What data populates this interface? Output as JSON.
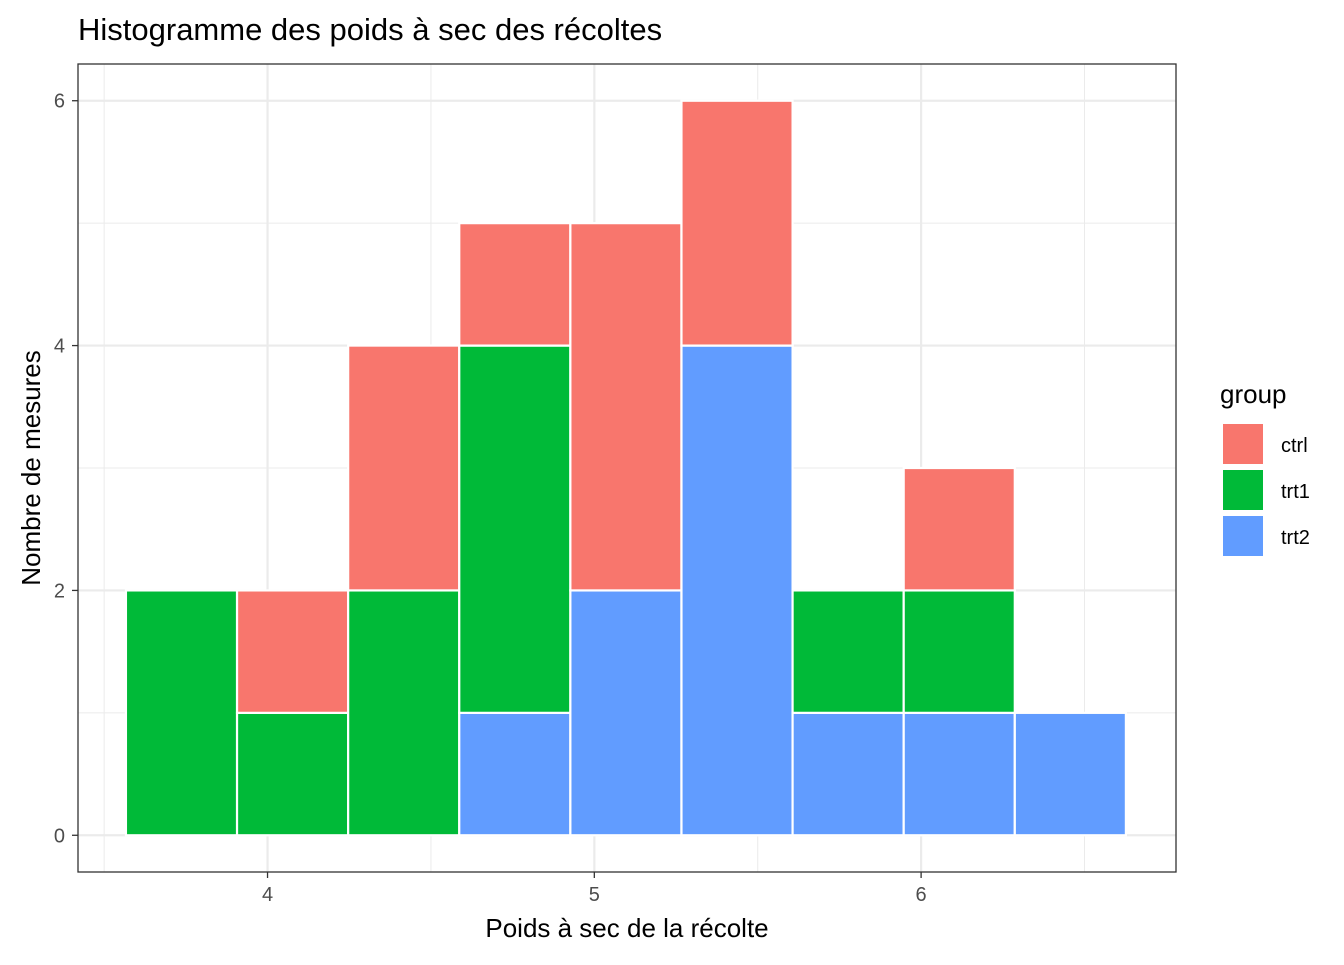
{
  "chart_data": {
    "type": "bar",
    "subtype": "stacked-histogram",
    "title": "Histogramme des poids à sec des récoltes",
    "xlabel": "Poids à sec de la récolte",
    "ylabel": "Nombre de mesures",
    "xlim": [
      3.42,
      6.78
    ],
    "ylim": [
      -0.3,
      6.3
    ],
    "xticks": [
      4,
      5,
      6
    ],
    "yticks": [
      0,
      2,
      4,
      6
    ],
    "grid": true,
    "legend": {
      "title": "group",
      "position": "right"
    },
    "bins": [
      [
        3.5667,
        3.9067
      ],
      [
        3.9067,
        4.2467
      ],
      [
        4.2467,
        4.5867
      ],
      [
        4.5867,
        4.9267
      ],
      [
        4.9267,
        5.2667
      ],
      [
        5.2667,
        5.6067
      ],
      [
        5.6067,
        5.9467
      ],
      [
        5.9467,
        6.2867
      ],
      [
        6.2867,
        6.6267
      ]
    ],
    "series": [
      {
        "name": "ctrl",
        "color": "#F8766D",
        "values": [
          0,
          1,
          2,
          1,
          3,
          2,
          0,
          1,
          0
        ]
      },
      {
        "name": "trt1",
        "color": "#00BA38",
        "values": [
          2,
          1,
          2,
          3,
          0,
          0,
          1,
          1,
          0
        ]
      },
      {
        "name": "trt2",
        "color": "#619CFF",
        "values": [
          0,
          0,
          0,
          1,
          2,
          4,
          1,
          1,
          1
        ]
      }
    ]
  }
}
